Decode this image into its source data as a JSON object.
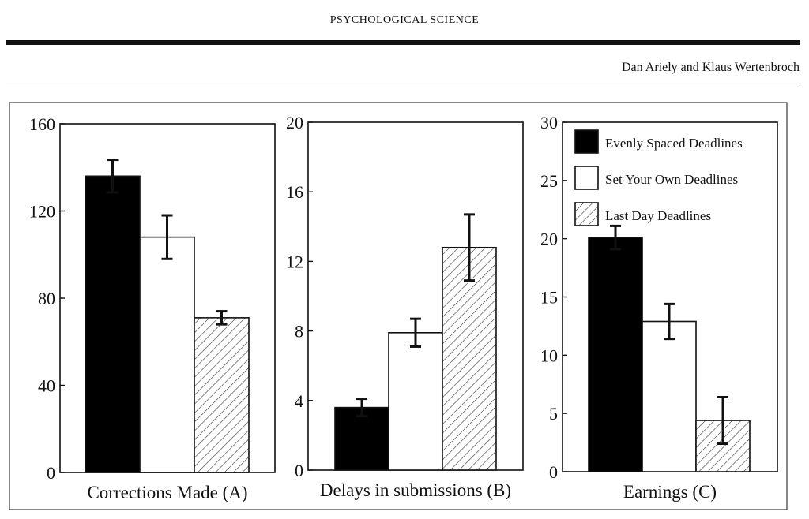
{
  "header": {
    "journal": "PSYCHOLOGICAL SCIENCE",
    "authors": "Dan Ariely and Klaus Wertenbroch"
  },
  "legend": {
    "items": [
      {
        "label": "Evenly Spaced Deadlines",
        "fill": "#000000",
        "pattern": "solid"
      },
      {
        "label": "Set Your Own Deadlines",
        "fill": "#ffffff",
        "pattern": "solid"
      },
      {
        "label": "Last Day Deadlines",
        "fill": "#ffffff",
        "pattern": "hatch"
      }
    ],
    "placement": "top-right of panel C"
  },
  "chart_data": [
    {
      "type": "bar",
      "xlabel": "Corrections Made (A)",
      "ylabel": "",
      "ylim": [
        0,
        160
      ],
      "yticks": [
        "0",
        "40",
        "80",
        "120",
        "160"
      ],
      "categories": [
        "Evenly Spaced Deadlines",
        "Set Your Own Deadlines",
        "Last Day Deadlines"
      ],
      "values": [
        136,
        108,
        71
      ],
      "errors": [
        7.5,
        10,
        3
      ],
      "grid": false
    },
    {
      "type": "bar",
      "xlabel": "Delays in submissions (B)",
      "ylabel": "",
      "ylim": [
        0,
        20
      ],
      "yticks": [
        "0",
        "4",
        "8",
        "12",
        "16",
        "20"
      ],
      "categories": [
        "Evenly Spaced Deadlines",
        "Set Your Own Deadlines",
        "Last Day Deadlines"
      ],
      "values": [
        3.6,
        7.9,
        12.8
      ],
      "errors": [
        0.5,
        0.8,
        1.9
      ],
      "grid": false
    },
    {
      "type": "bar",
      "xlabel": "Earnings (C)",
      "ylabel": "",
      "ylim": [
        0,
        30
      ],
      "yticks": [
        "0",
        "5",
        "10",
        "15",
        "20",
        "25",
        "30"
      ],
      "categories": [
        "Evenly Spaced Deadlines",
        "Set Your Own Deadlines",
        "Last Day Deadlines"
      ],
      "values": [
        20.1,
        12.9,
        4.4
      ],
      "errors": [
        1,
        1.5,
        2
      ],
      "grid": false
    }
  ]
}
